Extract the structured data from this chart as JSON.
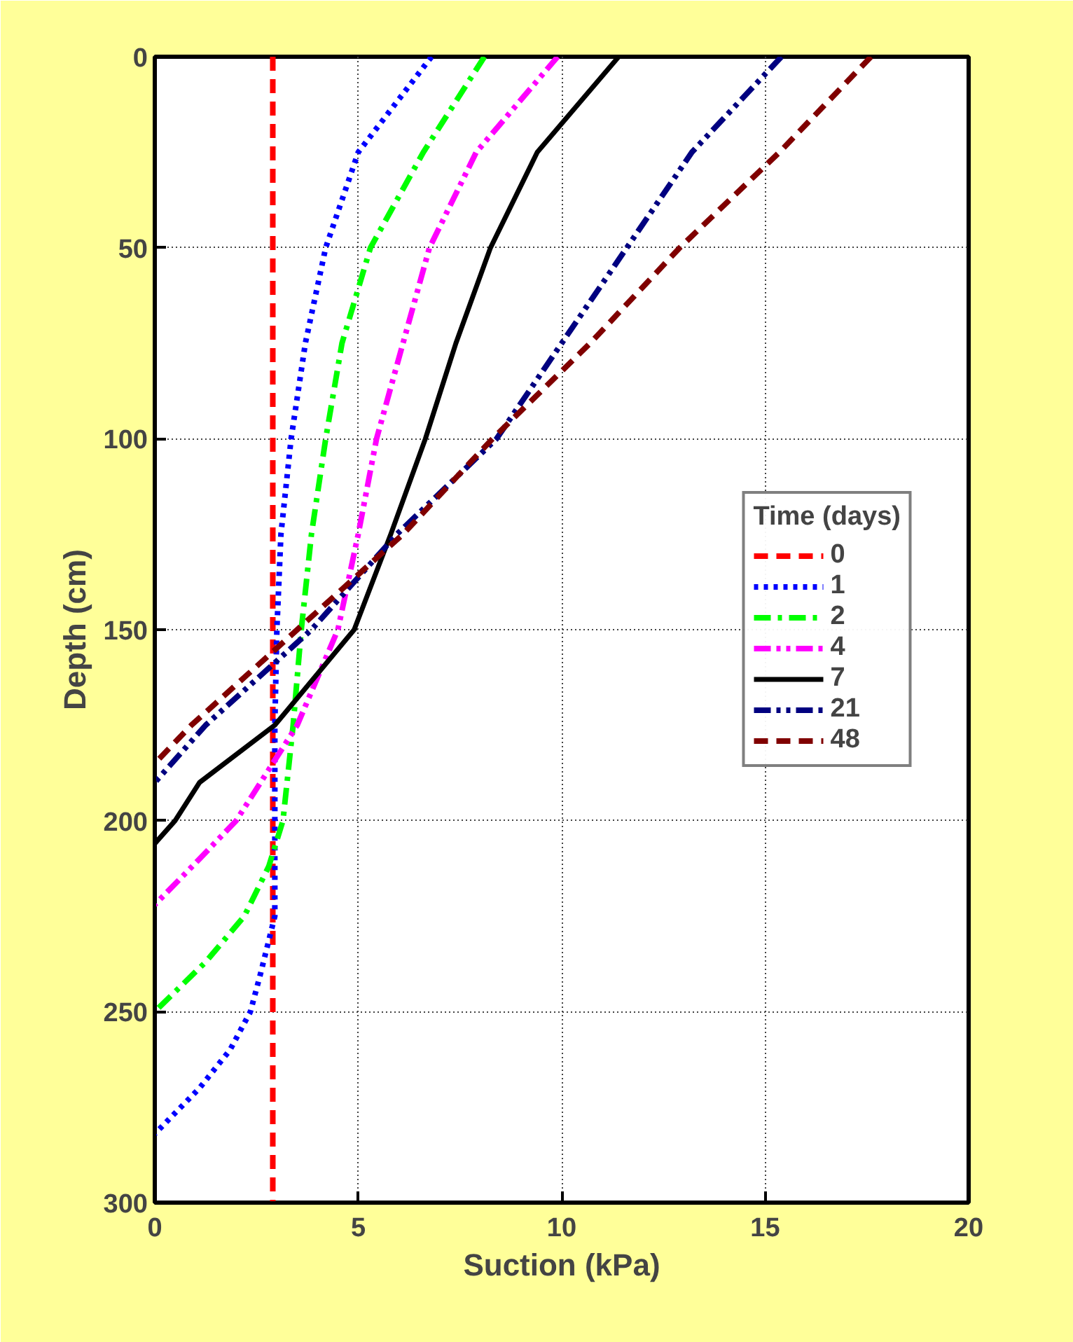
{
  "chart_data": {
    "type": "line",
    "xlabel": "Suction (kPa)",
    "ylabel": "Depth (cm)",
    "legend_title": "Time (days)",
    "legend": "right",
    "grid": true,
    "marker": "none",
    "xlim": [
      0,
      20
    ],
    "xticks": [
      0,
      5,
      10,
      15,
      20
    ],
    "ylim": [
      300,
      0
    ],
    "yticks": [
      0,
      50,
      100,
      150,
      200,
      250,
      300
    ],
    "series": [
      {
        "name": "0",
        "color": "#ff0000",
        "line_style": "dashed",
        "x": [
          2.9,
          2.9
        ],
        "values": [
          0,
          300
        ]
      },
      {
        "name": "1",
        "color": "#0000ff",
        "line_style": "dotted",
        "x": [
          6.8,
          5.0,
          4.2,
          3.7,
          3.35,
          3.1,
          3.0,
          2.95,
          2.95,
          2.95,
          2.6,
          2.35,
          1.85,
          1.1,
          0
        ],
        "values": [
          0,
          25,
          50,
          75,
          100,
          125,
          150,
          175,
          200,
          225,
          240,
          250,
          260,
          270,
          282
        ]
      },
      {
        "name": "2",
        "color": "#00ff00",
        "line_style": "dashdot",
        "x": [
          8.1,
          6.6,
          5.3,
          4.6,
          4.2,
          3.85,
          3.6,
          3.4,
          3.15,
          2.8,
          2.2,
          1.25,
          0
        ],
        "values": [
          0,
          25,
          50,
          75,
          100,
          125,
          150,
          175,
          200,
          212,
          225,
          237,
          250
        ]
      },
      {
        "name": "4",
        "color": "#ff00ff",
        "line_style": "dashdotdot",
        "x": [
          9.9,
          7.9,
          6.75,
          6.1,
          5.45,
          5.0,
          4.5,
          3.5,
          2.0,
          1.1,
          0
        ],
        "values": [
          0,
          25,
          50,
          75,
          100,
          125,
          150,
          175,
          200,
          210,
          222
        ]
      },
      {
        "name": "7",
        "color": "#000000",
        "line_style": "solid",
        "x": [
          11.4,
          9.4,
          8.25,
          7.4,
          6.65,
          5.8,
          4.9,
          2.95,
          1.1,
          0.5,
          0
        ],
        "values": [
          0,
          25,
          50,
          75,
          100,
          125,
          150,
          175,
          190,
          200,
          206
        ]
      },
      {
        "name": "21",
        "color": "#000080",
        "line_style": "dashdotdot",
        "x": [
          15.4,
          13.2,
          11.6,
          10.0,
          8.4,
          5.95,
          3.85,
          1.25,
          0
        ],
        "values": [
          0,
          25,
          50,
          75,
          100,
          125,
          150,
          175,
          190
        ]
      },
      {
        "name": "48",
        "color": "#800000",
        "line_style": "dashed",
        "x": [
          17.6,
          15.35,
          12.9,
          10.7,
          8.3,
          6.1,
          3.5,
          0.9,
          0
        ],
        "values": [
          0,
          25,
          50,
          75,
          100,
          125,
          150,
          175,
          185
        ]
      }
    ]
  }
}
